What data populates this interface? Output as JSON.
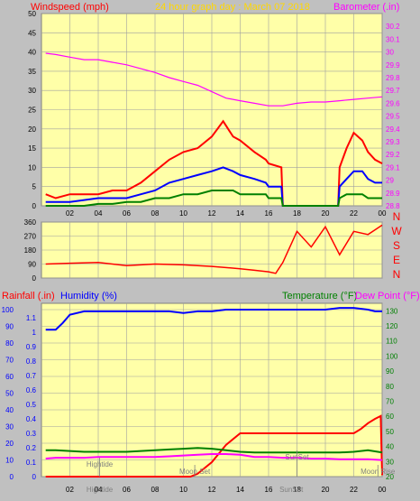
{
  "colors": {
    "background": "#c0c0c0",
    "plot_bg": "#ffffa8",
    "grid": "#a0a0a0",
    "title": "#ffd700",
    "wind_gust": "#ff0000",
    "wind_avg": "#0000ff",
    "wind_low": "#008000",
    "barometer": "#ff00ff",
    "direction": "#ff0000",
    "rain": "#ff0000",
    "humidity": "#0000ff",
    "temperature": "#008000",
    "dew_point": "#ff00ff",
    "temp_axis": "#008000",
    "event": "#808080"
  },
  "chart_data": [
    {
      "type": "line",
      "title": "24 hour graph day : March 07 2018",
      "ylabel_left": "Windspeed (mph)",
      "ylabel_right": "Barometer (.in)",
      "x_ticks": [
        "02",
        "04",
        "06",
        "08",
        "10",
        "12",
        "14",
        "16",
        "18",
        "20",
        "22",
        "00"
      ],
      "ylim_left": [
        0,
        50
      ],
      "y_ticks_left": [
        "0",
        "5",
        "10",
        "15",
        "20",
        "25",
        "30",
        "35",
        "40",
        "45",
        "50"
      ],
      "ylim_right": [
        28.8,
        30.3
      ],
      "y_ticks_right": [
        "28.8",
        "28.9",
        "29",
        "29.1",
        "29.2",
        "29.3",
        "29.4",
        "29.5",
        "29.6",
        "29.7",
        "29.8",
        "29.9",
        "30",
        "30.1",
        "30.2"
      ],
      "grid": true,
      "series": [
        {
          "role": "wind_gust",
          "x": [
            0.3,
            1,
            2,
            3,
            4,
            5,
            6,
            7,
            8,
            9,
            10,
            11,
            12,
            12.8,
            13.5,
            14,
            15,
            15.8,
            16,
            16.9,
            17,
            18,
            19,
            20,
            20.9,
            21,
            21.5,
            22,
            22.6,
            23,
            23.5,
            24
          ],
          "values": [
            3,
            2,
            3,
            3,
            3,
            4,
            4,
            6,
            9,
            12,
            14,
            15,
            18,
            22,
            18,
            17,
            14,
            12,
            11,
            10,
            0,
            0,
            0,
            0,
            0,
            10,
            15,
            19,
            17,
            14,
            12,
            11
          ]
        },
        {
          "role": "wind_avg",
          "x": [
            0.3,
            1,
            2,
            3,
            4,
            5,
            6,
            7,
            8,
            9,
            10,
            11,
            12,
            12.8,
            13.5,
            14,
            15,
            15.8,
            16,
            16.9,
            17,
            18,
            19,
            20,
            20.9,
            21,
            21.5,
            22,
            22.6,
            23,
            23.5,
            24
          ],
          "values": [
            1,
            1,
            1,
            1.5,
            2,
            2,
            2,
            3,
            4,
            6,
            7,
            8,
            9,
            10,
            9,
            8,
            7,
            6,
            5,
            5,
            0,
            0,
            0,
            0,
            0,
            5,
            7,
            9,
            9,
            7,
            6,
            6
          ]
        },
        {
          "role": "wind_low",
          "x": [
            0.3,
            1,
            2,
            3,
            4,
            5,
            6,
            7,
            8,
            9,
            10,
            11,
            12,
            12.8,
            13.5,
            14,
            15,
            15.8,
            16,
            16.9,
            17,
            18,
            19,
            20,
            20.9,
            21,
            21.5,
            22,
            22.6,
            23,
            23.5,
            24
          ],
          "values": [
            0,
            0,
            0,
            0,
            0.5,
            0.5,
            1,
            1,
            2,
            2,
            3,
            3,
            4,
            4,
            4,
            3,
            3,
            3,
            2,
            2,
            0,
            0,
            0,
            0,
            0,
            2,
            3,
            3,
            3,
            2,
            2,
            2
          ]
        },
        {
          "role": "barometer",
          "x": [
            0.3,
            1,
            2,
            3,
            4,
            5,
            6,
            7,
            8,
            9,
            10,
            11,
            12,
            13,
            14,
            15,
            16,
            17,
            18,
            19,
            20,
            21,
            22,
            23,
            24
          ],
          "values": [
            29.99,
            29.98,
            29.96,
            29.94,
            29.94,
            29.92,
            29.9,
            29.87,
            29.84,
            29.8,
            29.77,
            29.74,
            29.69,
            29.64,
            29.62,
            29.6,
            29.58,
            29.58,
            29.6,
            29.61,
            29.61,
            29.62,
            29.63,
            29.64,
            29.65
          ]
        }
      ]
    },
    {
      "type": "line",
      "ylim": [
        0,
        360
      ],
      "y_ticks": [
        "0",
        "90",
        "180",
        "270",
        "360"
      ],
      "direction_labels": [
        "N",
        "W",
        "S",
        "E",
        "N"
      ],
      "grid": true,
      "series": [
        {
          "role": "wind_direction",
          "x": [
            0.3,
            2,
            4,
            6,
            8,
            10,
            12,
            14,
            15,
            16,
            16.5,
            17,
            18,
            19,
            20,
            21,
            22,
            23,
            24
          ],
          "values": [
            90,
            95,
            100,
            80,
            90,
            85,
            75,
            60,
            50,
            40,
            30,
            100,
            300,
            200,
            330,
            150,
            300,
            280,
            340
          ]
        }
      ]
    },
    {
      "type": "line",
      "ylabel_left": "Rainfall (.in)",
      "ylabel_humidity": "Humidity (%)",
      "ylabel_right": "Temperature (°F)",
      "ylabel_right2": "Dew Point (°F)",
      "x_ticks": [
        "02",
        "04",
        "06",
        "08",
        "10",
        "12",
        "14",
        "16",
        "18",
        "20",
        "22",
        "00"
      ],
      "ylim_rain": [
        0,
        1.2
      ],
      "y_ticks_rain": [
        "0",
        "0.1",
        "0.2",
        "0.3",
        "0.4",
        "0.5",
        "0.6",
        "0.7",
        "0.8",
        "0.9",
        "1",
        "1.1"
      ],
      "ylim_humidity": [
        0,
        100
      ],
      "y_ticks_humidity": [
        "0",
        "10",
        "20",
        "30",
        "40",
        "50",
        "60",
        "70",
        "80",
        "90",
        "100"
      ],
      "ylim_temp": [
        20,
        135
      ],
      "y_ticks_temp": [
        "20",
        "30",
        "40",
        "50",
        "60",
        "70",
        "80",
        "90",
        "100",
        "110",
        "120",
        "130"
      ],
      "annotations": [
        "Hightide",
        "Moon Set",
        "SunSet",
        "Moon Rise"
      ],
      "bottom_markers": [
        "Hightide",
        "SunSet"
      ],
      "grid": true,
      "series": [
        {
          "role": "humidity",
          "x": [
            0.3,
            1,
            1.5,
            2,
            3,
            4,
            5,
            6,
            7,
            8,
            9,
            10,
            11,
            12,
            13,
            14,
            15,
            16,
            17,
            18,
            19,
            20,
            21,
            22,
            23,
            23.5,
            24
          ],
          "values": [
            88,
            88,
            92,
            97,
            99,
            99,
            99,
            99,
            99,
            99,
            99,
            98,
            99,
            99,
            100,
            100,
            100,
            100,
            100,
            100,
            100,
            100,
            101,
            101,
            100,
            99,
            99
          ]
        },
        {
          "role": "rain",
          "x": [
            0.3,
            9,
            10.5,
            11,
            12,
            13,
            14,
            15,
            16,
            17,
            18,
            19,
            20,
            21,
            22,
            22.5,
            23,
            23.5,
            23.9,
            24
          ],
          "values": [
            0,
            0,
            0,
            0.02,
            0.1,
            0.22,
            0.3,
            0.3,
            0.3,
            0.3,
            0.3,
            0.3,
            0.3,
            0.3,
            0.3,
            0.33,
            0.37,
            0.4,
            0.42,
            0.01
          ]
        },
        {
          "role": "temperature",
          "x": [
            0.3,
            1,
            2,
            3,
            4,
            5,
            6,
            7,
            8,
            9,
            10,
            11,
            12,
            13,
            14,
            15,
            16,
            17,
            18,
            19,
            20,
            21,
            22,
            23,
            24
          ],
          "values": [
            37.5,
            37.5,
            37,
            36.5,
            36.5,
            36.5,
            36.5,
            37,
            37.5,
            38,
            38.5,
            39,
            38.5,
            37.5,
            36.5,
            36,
            36,
            36,
            36,
            36,
            36,
            36,
            36.5,
            37.5,
            36
          ]
        },
        {
          "role": "dew_point",
          "x": [
            0.3,
            1,
            2,
            3,
            4,
            5,
            6,
            7,
            8,
            9,
            10,
            11,
            12,
            13,
            14,
            15,
            16,
            17,
            18,
            19,
            20,
            21,
            22,
            23,
            24
          ],
          "values": [
            32,
            32.5,
            32.5,
            32.5,
            33,
            33,
            33,
            33,
            33,
            33.5,
            34,
            34.5,
            35,
            35,
            34.5,
            33,
            33,
            32.5,
            32.5,
            32,
            32,
            31.5,
            31.5,
            31.5,
            31
          ]
        }
      ]
    }
  ]
}
